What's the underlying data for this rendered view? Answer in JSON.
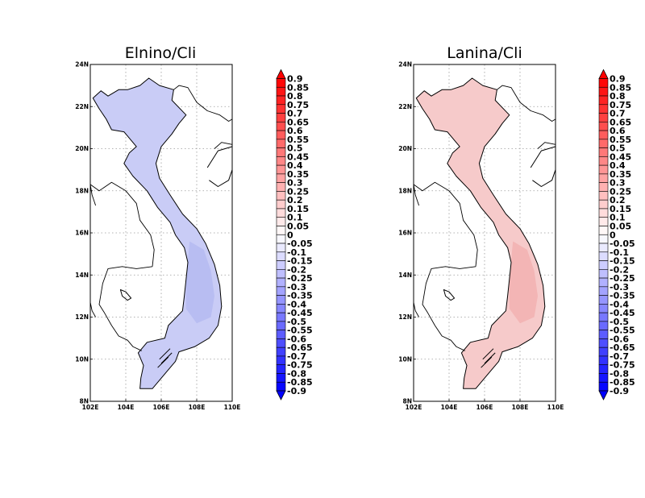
{
  "panels": [
    {
      "title": "Elnino/Cli",
      "fill": "#c9ccf6",
      "shade": "#b8bdf2"
    },
    {
      "title": "Lanina/Cli",
      "fill": "#f6caca",
      "shade": "#f3b5b5"
    }
  ],
  "axes": {
    "lat_ticks": [
      "8N",
      "10N",
      "12N",
      "14N",
      "16N",
      "18N",
      "20N",
      "22N",
      "24N"
    ],
    "lon_ticks": [
      "102E",
      "104E",
      "106E",
      "108E",
      "110E"
    ]
  },
  "colorbar": {
    "labels": [
      "0.9",
      "0.85",
      "0.8",
      "0.75",
      "0.7",
      "0.65",
      "0.6",
      "0.55",
      "0.5",
      "0.45",
      "0.4",
      "0.35",
      "0.3",
      "0.25",
      "0.2",
      "0.15",
      "0.1",
      "0.05",
      "0",
      "-0.05",
      "-0.1",
      "-0.15",
      "-0.2",
      "-0.25",
      "-0.3",
      "-0.35",
      "-0.4",
      "-0.45",
      "-0.5",
      "-0.55",
      "-0.6",
      "-0.65",
      "-0.7",
      "-0.75",
      "-0.8",
      "-0.85",
      "-0.9"
    ]
  },
  "colors": {
    "positive_max": "#ff0000",
    "negative_max": "#0000ff",
    "neutral": "#ffffff"
  }
}
